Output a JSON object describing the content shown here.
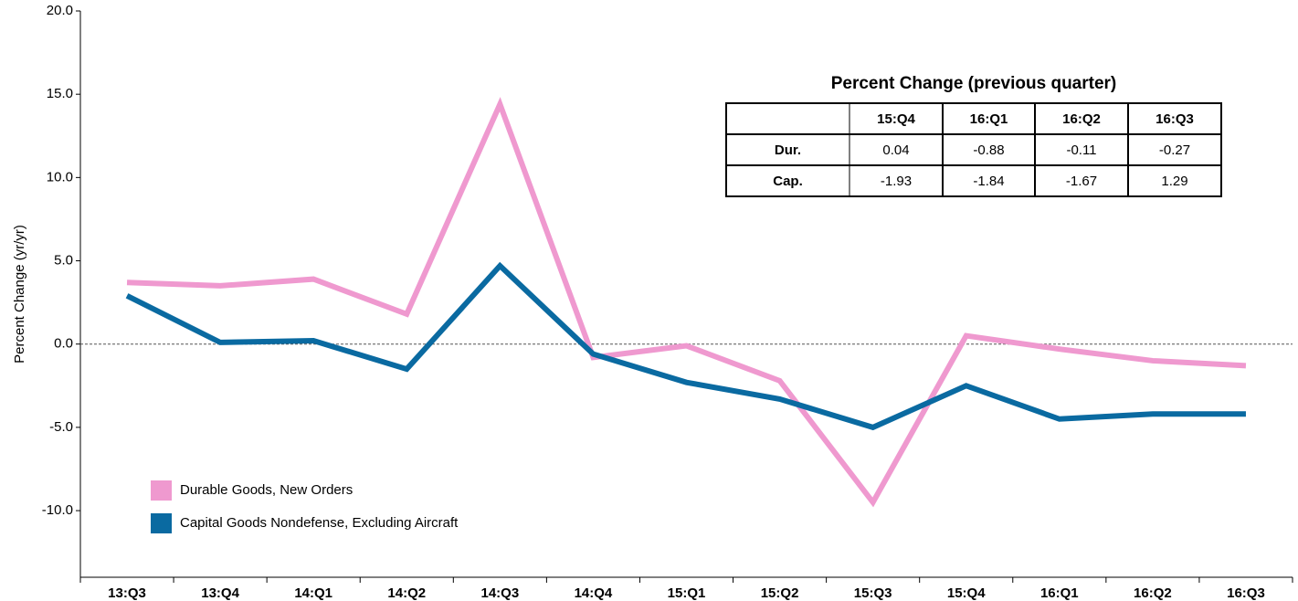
{
  "chart_data": {
    "type": "line",
    "ylabel": "Percent Change (yr/yr)",
    "categories": [
      "13:Q3",
      "13:Q4",
      "14:Q1",
      "14:Q2",
      "14:Q3",
      "14:Q4",
      "15:Q1",
      "15:Q2",
      "15:Q3",
      "15:Q4",
      "16:Q1",
      "16:Q2",
      "16:Q3"
    ],
    "series": [
      {
        "name": "Durable Goods, New Orders",
        "color": "#ef99cf",
        "values": [
          3.7,
          3.5,
          3.9,
          1.8,
          14.4,
          -0.8,
          -0.1,
          -2.2,
          -9.5,
          0.5,
          -0.3,
          -1.0,
          -1.3
        ]
      },
      {
        "name": "Capital Goods Nondefense, Excluding Aircraft",
        "color": "#0a6aa1",
        "values": [
          2.9,
          0.1,
          0.2,
          -1.5,
          4.7,
          -0.6,
          -2.3,
          -3.3,
          -5.0,
          -2.5,
          -4.5,
          -4.2,
          -4.2
        ]
      }
    ],
    "ylim": [
      -14,
      20
    ],
    "yticks": [
      {
        "value": -10,
        "label": "-10.0"
      },
      {
        "value": -5,
        "label": "-5.0"
      },
      {
        "value": 0,
        "label": "0.0"
      },
      {
        "value": 5,
        "label": "5.0"
      },
      {
        "value": 10,
        "label": "10.0"
      },
      {
        "value": 15,
        "label": "15.0"
      },
      {
        "value": 20,
        "label": "20.0"
      }
    ],
    "legend": "bottom-left",
    "table": {
      "title": "Percent Change (previous quarter)",
      "columns": [
        "15:Q4",
        "16:Q1",
        "16:Q2",
        "16:Q3"
      ],
      "rows": [
        {
          "label": "Dur.",
          "values": [
            0.04,
            -0.88,
            -0.11,
            -0.27
          ]
        },
        {
          "label": "Cap.",
          "values": [
            -1.93,
            -1.84,
            -1.67,
            1.29
          ]
        }
      ]
    }
  }
}
